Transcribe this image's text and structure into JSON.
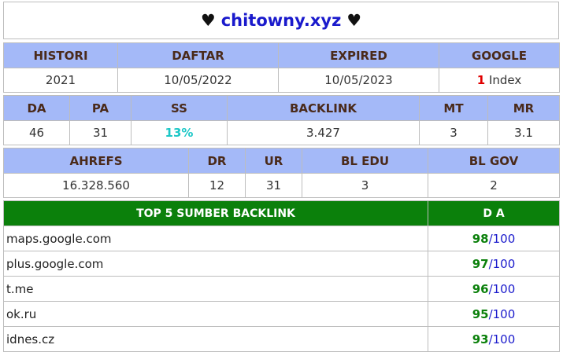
{
  "header": {
    "heart_left": "♥",
    "domain": "chitowny.xyz",
    "heart_right": "♥"
  },
  "table1": {
    "headers": [
      "HISTORI",
      "DAFTAR",
      "EXPIRED",
      "GOOGLE"
    ],
    "values": {
      "histori": "2021",
      "daftar": "10/05/2022",
      "expired": "10/05/2023",
      "google_count": "1",
      "google_label": "Index"
    }
  },
  "table2": {
    "headers": [
      "DA",
      "PA",
      "SS",
      "BACKLINK",
      "MT",
      "MR"
    ],
    "values": [
      "46",
      "31",
      "13%",
      "3.427",
      "3",
      "3.1"
    ]
  },
  "table3": {
    "headers": [
      "AHREFS",
      "DR",
      "UR",
      "BL EDU",
      "BL GOV"
    ],
    "values": [
      "16.328.560",
      "12",
      "31",
      "3",
      "2"
    ]
  },
  "backlinks": {
    "header_source": "TOP 5 SUMBER BACKLINK",
    "header_da": "D A",
    "rows": [
      {
        "source": "maps.google.com",
        "da": "98",
        "max": "100"
      },
      {
        "source": "plus.google.com",
        "da": "97",
        "max": "100"
      },
      {
        "source": "t.me",
        "da": "96",
        "max": "100"
      },
      {
        "source": "ok.ru",
        "da": "95",
        "max": "100"
      },
      {
        "source": "idnes.cz",
        "da": "93",
        "max": "100"
      }
    ],
    "separator": "/"
  },
  "colors": {
    "header_bg": "#a4b9f8",
    "green_header": "#0b800b",
    "domain": "#1a1acc",
    "ss": "#1cc7c7",
    "google_count": "#e00000"
  }
}
